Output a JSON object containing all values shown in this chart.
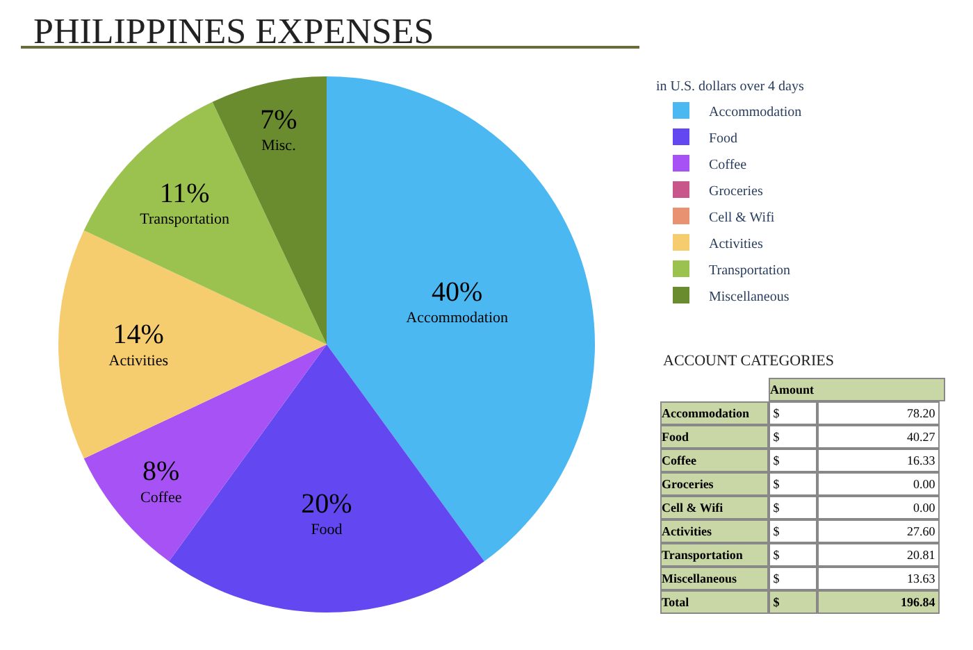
{
  "chart_data": [
    {
      "type": "pie",
      "title": "PHILIPPINES EXPENSES",
      "legend_title": "in U.S. dollars over 4 days",
      "legend": "top right",
      "categories": [
        "Accommodation",
        "Food",
        "Coffee",
        "Groceries",
        "Cell & Wifi",
        "Activities",
        "Transportation",
        "Miscellaneous"
      ],
      "values": [
        40,
        20,
        8,
        0,
        0,
        14,
        11,
        7
      ],
      "colors": [
        "#4bb8f2",
        "#6347f0",
        "#a652f5",
        "#c8568a",
        "#e89272",
        "#f5cc6e",
        "#9bc24f",
        "#6a8b2e"
      ],
      "value_labels": [
        "40%\nAccommodation",
        "20%\nFood",
        "8%\nCoffee",
        null,
        null,
        "14%\nActivities",
        "11%\nTransportation",
        "7%\nMisc."
      ]
    },
    {
      "type": "other",
      "title": "ACCOUNT CATEGORIES",
      "categories": [
        "Accommodation",
        "Food",
        "Coffee",
        "Groceries",
        "Cell & Wifi",
        "Activities",
        "Transportation",
        "Miscellaneous",
        "Total"
      ],
      "values": [
        78.2,
        40.27,
        16.33,
        0.0,
        0.0,
        27.6,
        20.81,
        13.63,
        196.84
      ],
      "value_labels": [
        "78.20",
        "40.27",
        "16.33",
        "0.00",
        "0.00",
        "27.60",
        "20.81",
        "13.63",
        "196.84"
      ],
      "annotations": [
        "Amount",
        "$"
      ]
    }
  ]
}
